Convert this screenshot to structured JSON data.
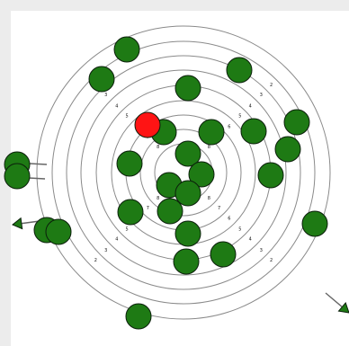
{
  "colors": {
    "background": "#ececec",
    "field": "#ffffff",
    "ring": "#8a8a8a",
    "ball": "#1e7a14",
    "highlight": "#ff1414",
    "arrow": "#1e7a14"
  },
  "target": {
    "ring_count": 8,
    "ring_labels_left": [
      "5",
      "4",
      "3",
      "2"
    ],
    "ring_labels_right": [
      "5",
      "4",
      "3",
      "2"
    ],
    "ring_labels_lower_left": [
      "8",
      "7",
      "6",
      "5",
      "4",
      "3",
      "2"
    ],
    "ring_labels_lower_right": [
      "8",
      "7",
      "6",
      "5",
      "4",
      "3",
      "2"
    ],
    "ring_labels_upper_left": [
      "8",
      "7",
      "6",
      "5",
      "4",
      "3",
      "2"
    ],
    "ring_labels_upper_right": [
      "8",
      "7",
      "6",
      "5",
      "4",
      "3",
      "2"
    ]
  },
  "balls": {
    "count": 28,
    "highlighted_count": 1,
    "highlight_color": "red",
    "ball_color": "green"
  },
  "arrows": {
    "count": 4,
    "icon": "arrow-icon"
  }
}
